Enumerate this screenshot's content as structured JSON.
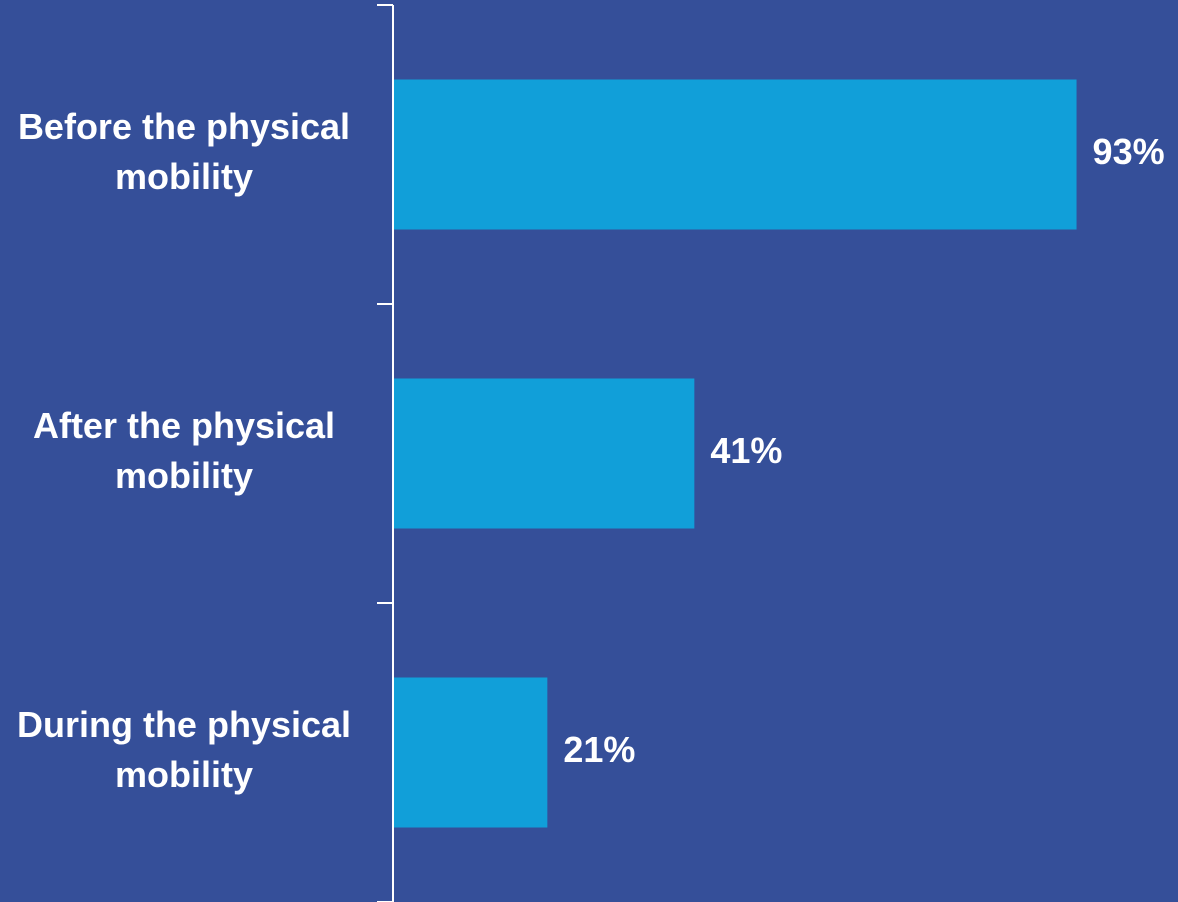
{
  "colors": {
    "background": "#354f99",
    "bar": "#119fd9",
    "text": "#ffffff",
    "axis": "#ffffff"
  },
  "chart_data": {
    "type": "bar",
    "orientation": "horizontal",
    "title": "",
    "xlabel": "",
    "ylabel": "",
    "categories": [
      [
        "Before the physical",
        "mobility"
      ],
      [
        "After the physical",
        "mobility"
      ],
      [
        "During the physical",
        "mobility"
      ]
    ],
    "values": [
      93,
      41,
      21
    ],
    "value_labels": [
      "93%",
      "41%",
      "21%"
    ],
    "xlim": [
      0,
      100
    ],
    "grid": false,
    "legend": "none"
  }
}
